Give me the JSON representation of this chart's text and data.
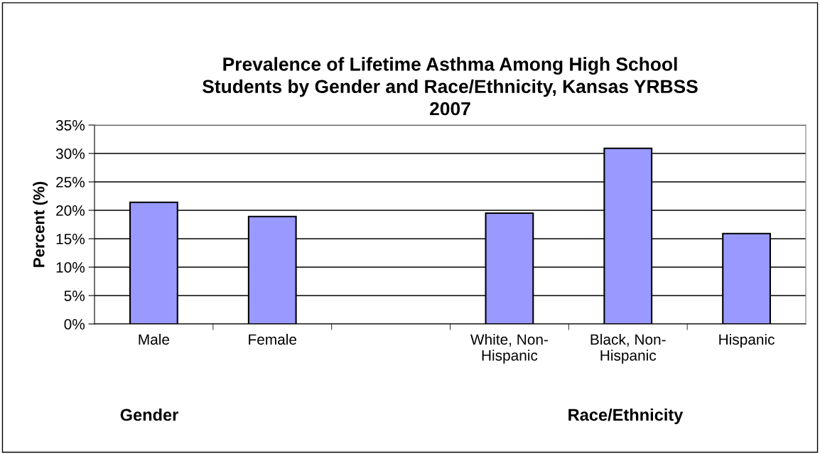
{
  "chart_data": {
    "type": "bar",
    "title": "Prevalence of Lifetime Asthma Among High School\nStudents by Gender and Race/Ethnicity, Kansas YRBSS\n2007",
    "ylabel": "Percent (%)",
    "categories": [
      "Male",
      "Female",
      null,
      "White, Non-\nHispanic",
      "Black, Non-\nHispanic",
      "Hispanic"
    ],
    "values": [
      21.4,
      18.9,
      null,
      19.5,
      30.9,
      15.9
    ],
    "color": "#9999ff",
    "ylim": [
      0,
      35
    ],
    "yticks": [
      {
        "value": 0,
        "label": "0%"
      },
      {
        "value": 5,
        "label": "5%"
      },
      {
        "value": 10,
        "label": "10%"
      },
      {
        "value": 15,
        "label": "15%"
      },
      {
        "value": 20,
        "label": "20%"
      },
      {
        "value": 25,
        "label": "25%"
      },
      {
        "value": 30,
        "label": "30%"
      },
      {
        "value": 35,
        "label": "35%"
      }
    ],
    "grid": "y",
    "annotations": [
      "Gender",
      "Race/Ethnicity"
    ]
  }
}
